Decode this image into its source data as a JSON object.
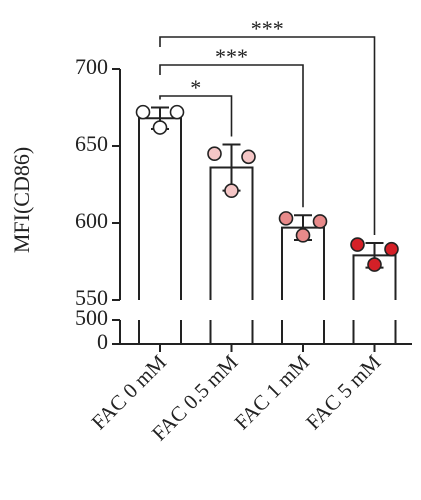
{
  "chart_data": {
    "type": "bar",
    "ylabel": "MFI(CD86)",
    "categories": [
      "FAC 0 mM",
      "FAC 0.5 mM",
      "FAC 1 mM",
      "FAC 5 mM"
    ],
    "values": [
      668,
      636,
      597,
      579
    ],
    "errors": [
      7,
      15,
      8,
      8
    ],
    "points": [
      [
        672,
        672,
        662
      ],
      [
        645,
        643,
        621
      ],
      [
        603,
        601,
        592
      ],
      [
        586,
        583,
        573
      ]
    ],
    "point_colors": [
      "#ffffff",
      "#f5c6c6",
      "#e88a8a",
      "#d42027"
    ],
    "bar_color": "#ffffff",
    "ylim": [
      0,
      700
    ],
    "y_break": [
      500,
      550
    ],
    "yticks": [
      0,
      500,
      550,
      600,
      650,
      700
    ],
    "comparisons": [
      {
        "from": 0,
        "to": 1,
        "label": "*"
      },
      {
        "from": 0,
        "to": 2,
        "label": "***"
      },
      {
        "from": 0,
        "to": 3,
        "label": "***"
      }
    ]
  }
}
